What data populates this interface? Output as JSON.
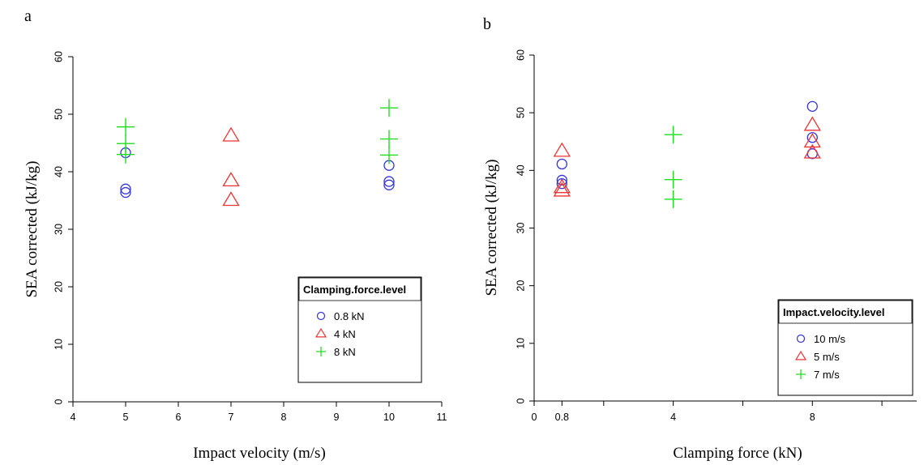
{
  "colors": {
    "circle": "#3333dd",
    "triangle": "#ee3333",
    "plus": "#22dd22"
  },
  "chart_data": [
    {
      "panel_label": "a",
      "type": "scatter",
      "xlabel": "Impact velocity (m/s)",
      "ylabel": "SEA corrected (kJ/kg)",
      "xlim": [
        4,
        11
      ],
      "ylim": [
        0,
        60
      ],
      "xticks": [
        {
          "v": 4,
          "label": "4"
        },
        {
          "v": 5,
          "label": "5"
        },
        {
          "v": 6,
          "label": "6"
        },
        {
          "v": 7,
          "label": "7"
        },
        {
          "v": 8,
          "label": "8"
        },
        {
          "v": 9,
          "label": "9"
        },
        {
          "v": 10,
          "label": "10"
        },
        {
          "v": 11,
          "label": "11"
        }
      ],
      "yticks": [
        {
          "v": 0,
          "label": "0"
        },
        {
          "v": 10,
          "label": "10"
        },
        {
          "v": 20,
          "label": "20"
        },
        {
          "v": 30,
          "label": "30"
        },
        {
          "v": 40,
          "label": "40"
        },
        {
          "v": 50,
          "label": "50"
        },
        {
          "v": 60,
          "label": "60"
        }
      ],
      "legend": {
        "title": "Clamping.force.level",
        "placement": "bottom-right",
        "entries": [
          {
            "label": "0.8 kN",
            "marker": "circle"
          },
          {
            "label": "4 kN",
            "marker": "triangle"
          },
          {
            "label": "8 kN",
            "marker": "plus"
          }
        ]
      },
      "series": [
        {
          "name": "0.8 kN",
          "marker": "circle",
          "points": [
            [
              5,
              43.3
            ],
            [
              5,
              37.0
            ],
            [
              5,
              36.4
            ],
            [
              10,
              41.1
            ],
            [
              10,
              38.3
            ],
            [
              10,
              37.7
            ]
          ]
        },
        {
          "name": "4 kN",
          "marker": "triangle",
          "points": [
            [
              7,
              46.2
            ],
            [
              7,
              38.4
            ],
            [
              7,
              35.0
            ]
          ]
        },
        {
          "name": "8 kN",
          "marker": "plus",
          "points": [
            [
              5,
              47.8
            ],
            [
              5,
              44.9
            ],
            [
              5,
              43.0
            ],
            [
              10,
              51.1
            ],
            [
              10,
              45.7
            ],
            [
              10,
              42.9
            ]
          ]
        }
      ]
    },
    {
      "panel_label": "b",
      "type": "scatter",
      "xlabel": "Clamping force (kN)",
      "ylabel": "SEA corrected (kJ/kg)",
      "xlim": [
        0,
        11
      ],
      "ylim": [
        0,
        60
      ],
      "xticks": [
        {
          "v": 0,
          "label": "0"
        },
        {
          "v": 0.8,
          "label": "0.8"
        },
        {
          "v": 2,
          "label": ""
        },
        {
          "v": 4,
          "label": "4"
        },
        {
          "v": 6,
          "label": ""
        },
        {
          "v": 8,
          "label": "8"
        },
        {
          "v": 10,
          "label": ""
        }
      ],
      "yticks": [
        {
          "v": 0,
          "label": "0"
        },
        {
          "v": 10,
          "label": "10"
        },
        {
          "v": 20,
          "label": "20"
        },
        {
          "v": 30,
          "label": "30"
        },
        {
          "v": 40,
          "label": "40"
        },
        {
          "v": 50,
          "label": "50"
        },
        {
          "v": 60,
          "label": "60"
        }
      ],
      "legend": {
        "title": "Impact.velocity.level",
        "placement": "bottom-right",
        "entries": [
          {
            "label": "10 m/s",
            "marker": "circle"
          },
          {
            "label": "5 m/s",
            "marker": "triangle"
          },
          {
            "label": "7 m/s",
            "marker": "plus"
          }
        ]
      },
      "series": [
        {
          "name": "10 m/s",
          "marker": "circle",
          "points": [
            [
              0.8,
              41.1
            ],
            [
              0.8,
              38.3
            ],
            [
              0.8,
              37.7
            ],
            [
              8,
              51.1
            ],
            [
              8,
              45.7
            ],
            [
              8,
              42.9
            ]
          ]
        },
        {
          "name": "5 m/s",
          "marker": "triangle",
          "points": [
            [
              0.8,
              43.3
            ],
            [
              0.8,
              37.0
            ],
            [
              0.8,
              36.4
            ],
            [
              8,
              47.8
            ],
            [
              8,
              44.9
            ],
            [
              8,
              43.0
            ]
          ]
        },
        {
          "name": "7 m/s",
          "marker": "plus",
          "points": [
            [
              4,
              46.2
            ],
            [
              4,
              38.4
            ],
            [
              4,
              35.0
            ]
          ]
        }
      ]
    }
  ]
}
